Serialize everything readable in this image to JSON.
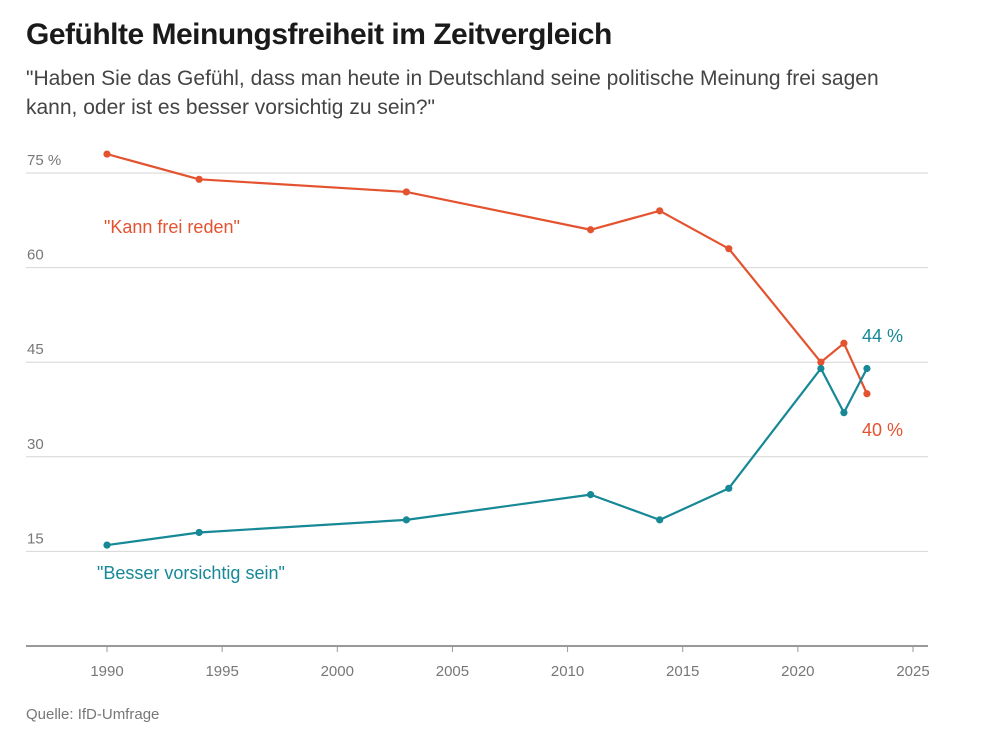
{
  "chart_data": {
    "type": "line",
    "title": "Gefühlte Meinungsfreiheit im Zeitvergleich",
    "subtitle": "\"Haben Sie das Gefühl, dass man heute in Deutschland seine politische Meinung frei sagen kann, oder ist es besser vorsichtig zu sein?\"",
    "source": "Quelle: IfD-Umfrage",
    "xlabel": "",
    "ylabel": "",
    "xlim": [
      1987,
      2025.5
    ],
    "ylim": [
      0,
      80
    ],
    "xticks": [
      1990,
      1995,
      2000,
      2005,
      2010,
      2015,
      2020,
      2025
    ],
    "yticks": [
      15,
      30,
      45,
      60,
      75
    ],
    "ytick_labels": [
      "15",
      "30",
      "45",
      "60",
      "75 %"
    ],
    "grid": true,
    "series": [
      {
        "name": "\"Kann frei reden\"",
        "color": "#e4532f",
        "x": [
          1990,
          1994,
          2003,
          2011,
          2014,
          2017,
          2021,
          2022,
          2023
        ],
        "values": [
          78,
          74,
          72,
          66,
          69,
          63,
          45,
          48,
          40
        ],
        "end_label": "40 %"
      },
      {
        "name": "\"Besser vorsichtig sein\"",
        "color": "#168896",
        "x": [
          1990,
          1994,
          2003,
          2011,
          2014,
          2017,
          2021,
          2022,
          2023
        ],
        "values": [
          16,
          18,
          20,
          24,
          20,
          25,
          44,
          37,
          44
        ],
        "end_label": "44 %"
      }
    ]
  }
}
